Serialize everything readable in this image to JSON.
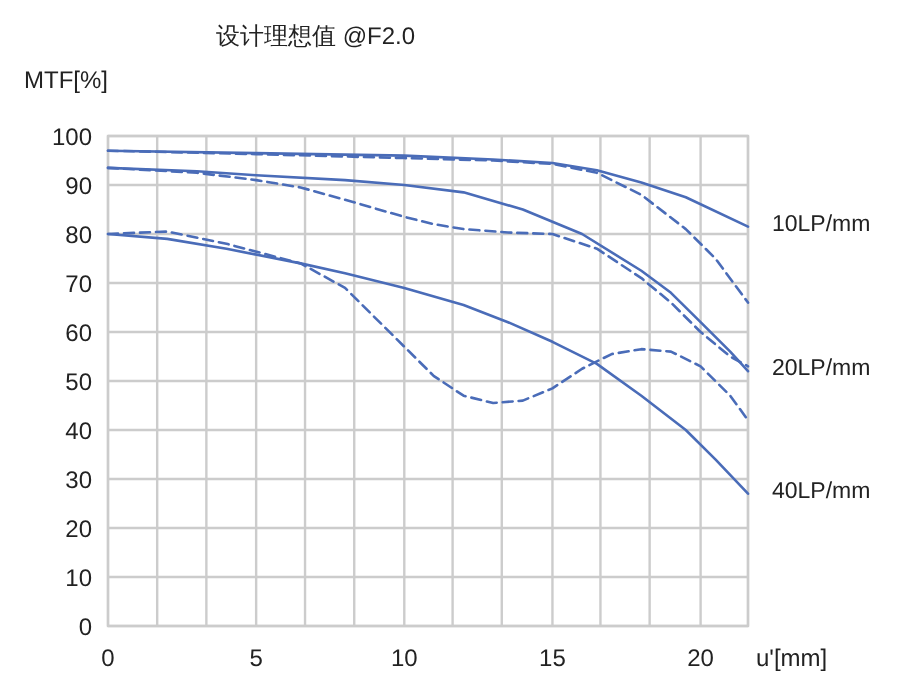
{
  "chart_data": {
    "type": "line",
    "title": "设计理想值 @F2.0",
    "ylabel": "MTF[%]",
    "xlabel": "u'[mm]",
    "xlim": [
      0,
      21.6
    ],
    "ylim": [
      0,
      100
    ],
    "xticks": [
      0,
      {
        "value": 1.66,
        "label": null
      },
      {
        "value": 3.32,
        "label": null
      },
      5,
      {
        "value": 6.65,
        "label": null
      },
      {
        "value": 8.31,
        "label": null
      },
      10,
      {
        "value": 11.63,
        "label": null
      },
      {
        "value": 13.29,
        "label": null
      },
      15,
      {
        "value": 16.62,
        "label": null
      },
      {
        "value": 18.28,
        "label": null
      },
      20,
      {
        "value": 21.6,
        "label": null
      }
    ],
    "yticks": [
      0,
      10,
      20,
      30,
      40,
      50,
      60,
      70,
      80,
      90,
      100
    ],
    "grid": true,
    "series": [
      {
        "name": "10LP/mm",
        "color": "#4a6cb8",
        "line_style": "solid",
        "x": [
          0,
          5,
          10,
          13,
          15,
          16.5,
          18,
          19.5,
          21.6
        ],
        "values": [
          97,
          96.5,
          96,
          95.2,
          94.5,
          93,
          90.5,
          87.5,
          81.5
        ]
      },
      {
        "color": "#4a6cb8",
        "line_style": "dashed",
        "x": [
          0,
          5,
          10,
          13,
          15,
          16.5,
          18,
          19.5,
          20.5,
          21.6
        ],
        "values": [
          97,
          96.3,
          95.5,
          95,
          94.3,
          92.5,
          88,
          81,
          75,
          66
        ]
      },
      {
        "name": "20LP/mm",
        "color": "#4a6cb8",
        "line_style": "solid",
        "x": [
          0,
          3,
          5,
          8,
          10,
          12,
          14,
          16,
          18,
          19,
          20,
          21,
          21.6
        ],
        "values": [
          93.5,
          92.8,
          92,
          91,
          90,
          88.5,
          85,
          80,
          72.5,
          68,
          62,
          56,
          52
        ]
      },
      {
        "color": "#4a6cb8",
        "line_style": "dashed",
        "x": [
          0,
          3,
          5,
          6.5,
          8,
          10,
          11,
          12,
          13.5,
          15,
          16.5,
          18,
          19,
          20,
          21,
          21.6
        ],
        "values": [
          93.5,
          92.5,
          91,
          89.5,
          87,
          83.5,
          82,
          81,
          80.3,
          80,
          77,
          71,
          66,
          60,
          55,
          53
        ]
      },
      {
        "name": "40LP/mm",
        "color": "#4a6cb8",
        "line_style": "solid",
        "x": [
          0,
          2,
          4,
          6.5,
          8,
          10,
          12,
          13.5,
          15,
          16.5,
          18,
          19.5,
          20.5,
          21.6
        ],
        "values": [
          80,
          79,
          77,
          74,
          72,
          69,
          65.5,
          62,
          58,
          53.5,
          47,
          40,
          34,
          27
        ]
      },
      {
        "color": "#4a6cb8",
        "line_style": "dashed",
        "x": [
          0,
          2,
          4,
          6.5,
          8,
          9,
          10,
          11,
          12,
          13,
          14,
          15,
          16,
          17,
          18,
          19,
          20,
          21,
          21.6
        ],
        "values": [
          80,
          80.5,
          78,
          74,
          69,
          63,
          57,
          51,
          47,
          45.5,
          46,
          48.5,
          52.5,
          55.5,
          56.5,
          56,
          53,
          47,
          42
        ]
      }
    ]
  }
}
